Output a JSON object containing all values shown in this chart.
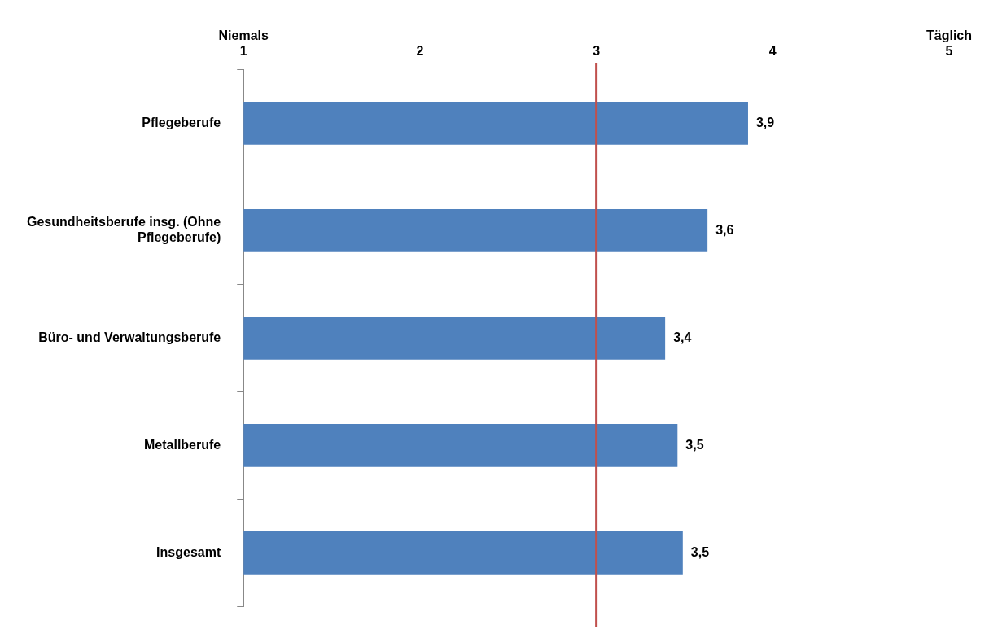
{
  "chart_data": {
    "type": "bar",
    "orientation": "horizontal",
    "categories": [
      "Pflegeberufe",
      "Gesundheitsberufe insg. (Ohne Pflegeberufe)",
      "Büro- und Verwaltungsberufe",
      "Metallberufe",
      "Insgesamt"
    ],
    "values": [
      3.86,
      3.63,
      3.39,
      3.46,
      3.49
    ],
    "value_labels": [
      "3,9",
      "3,6",
      "3,4",
      "3,5",
      "3,5"
    ],
    "color": "#4f81bd",
    "xlim": [
      1,
      5
    ],
    "xticks": [
      {
        "value": 1,
        "label": "Niemals\n1"
      },
      2,
      3,
      4,
      {
        "value": 5,
        "label": "Täglich\n5"
      }
    ],
    "ref_lines": [
      {
        "axis": "x",
        "value": 3,
        "color": "#c0504d"
      }
    ],
    "grid": false,
    "legend": false
  }
}
